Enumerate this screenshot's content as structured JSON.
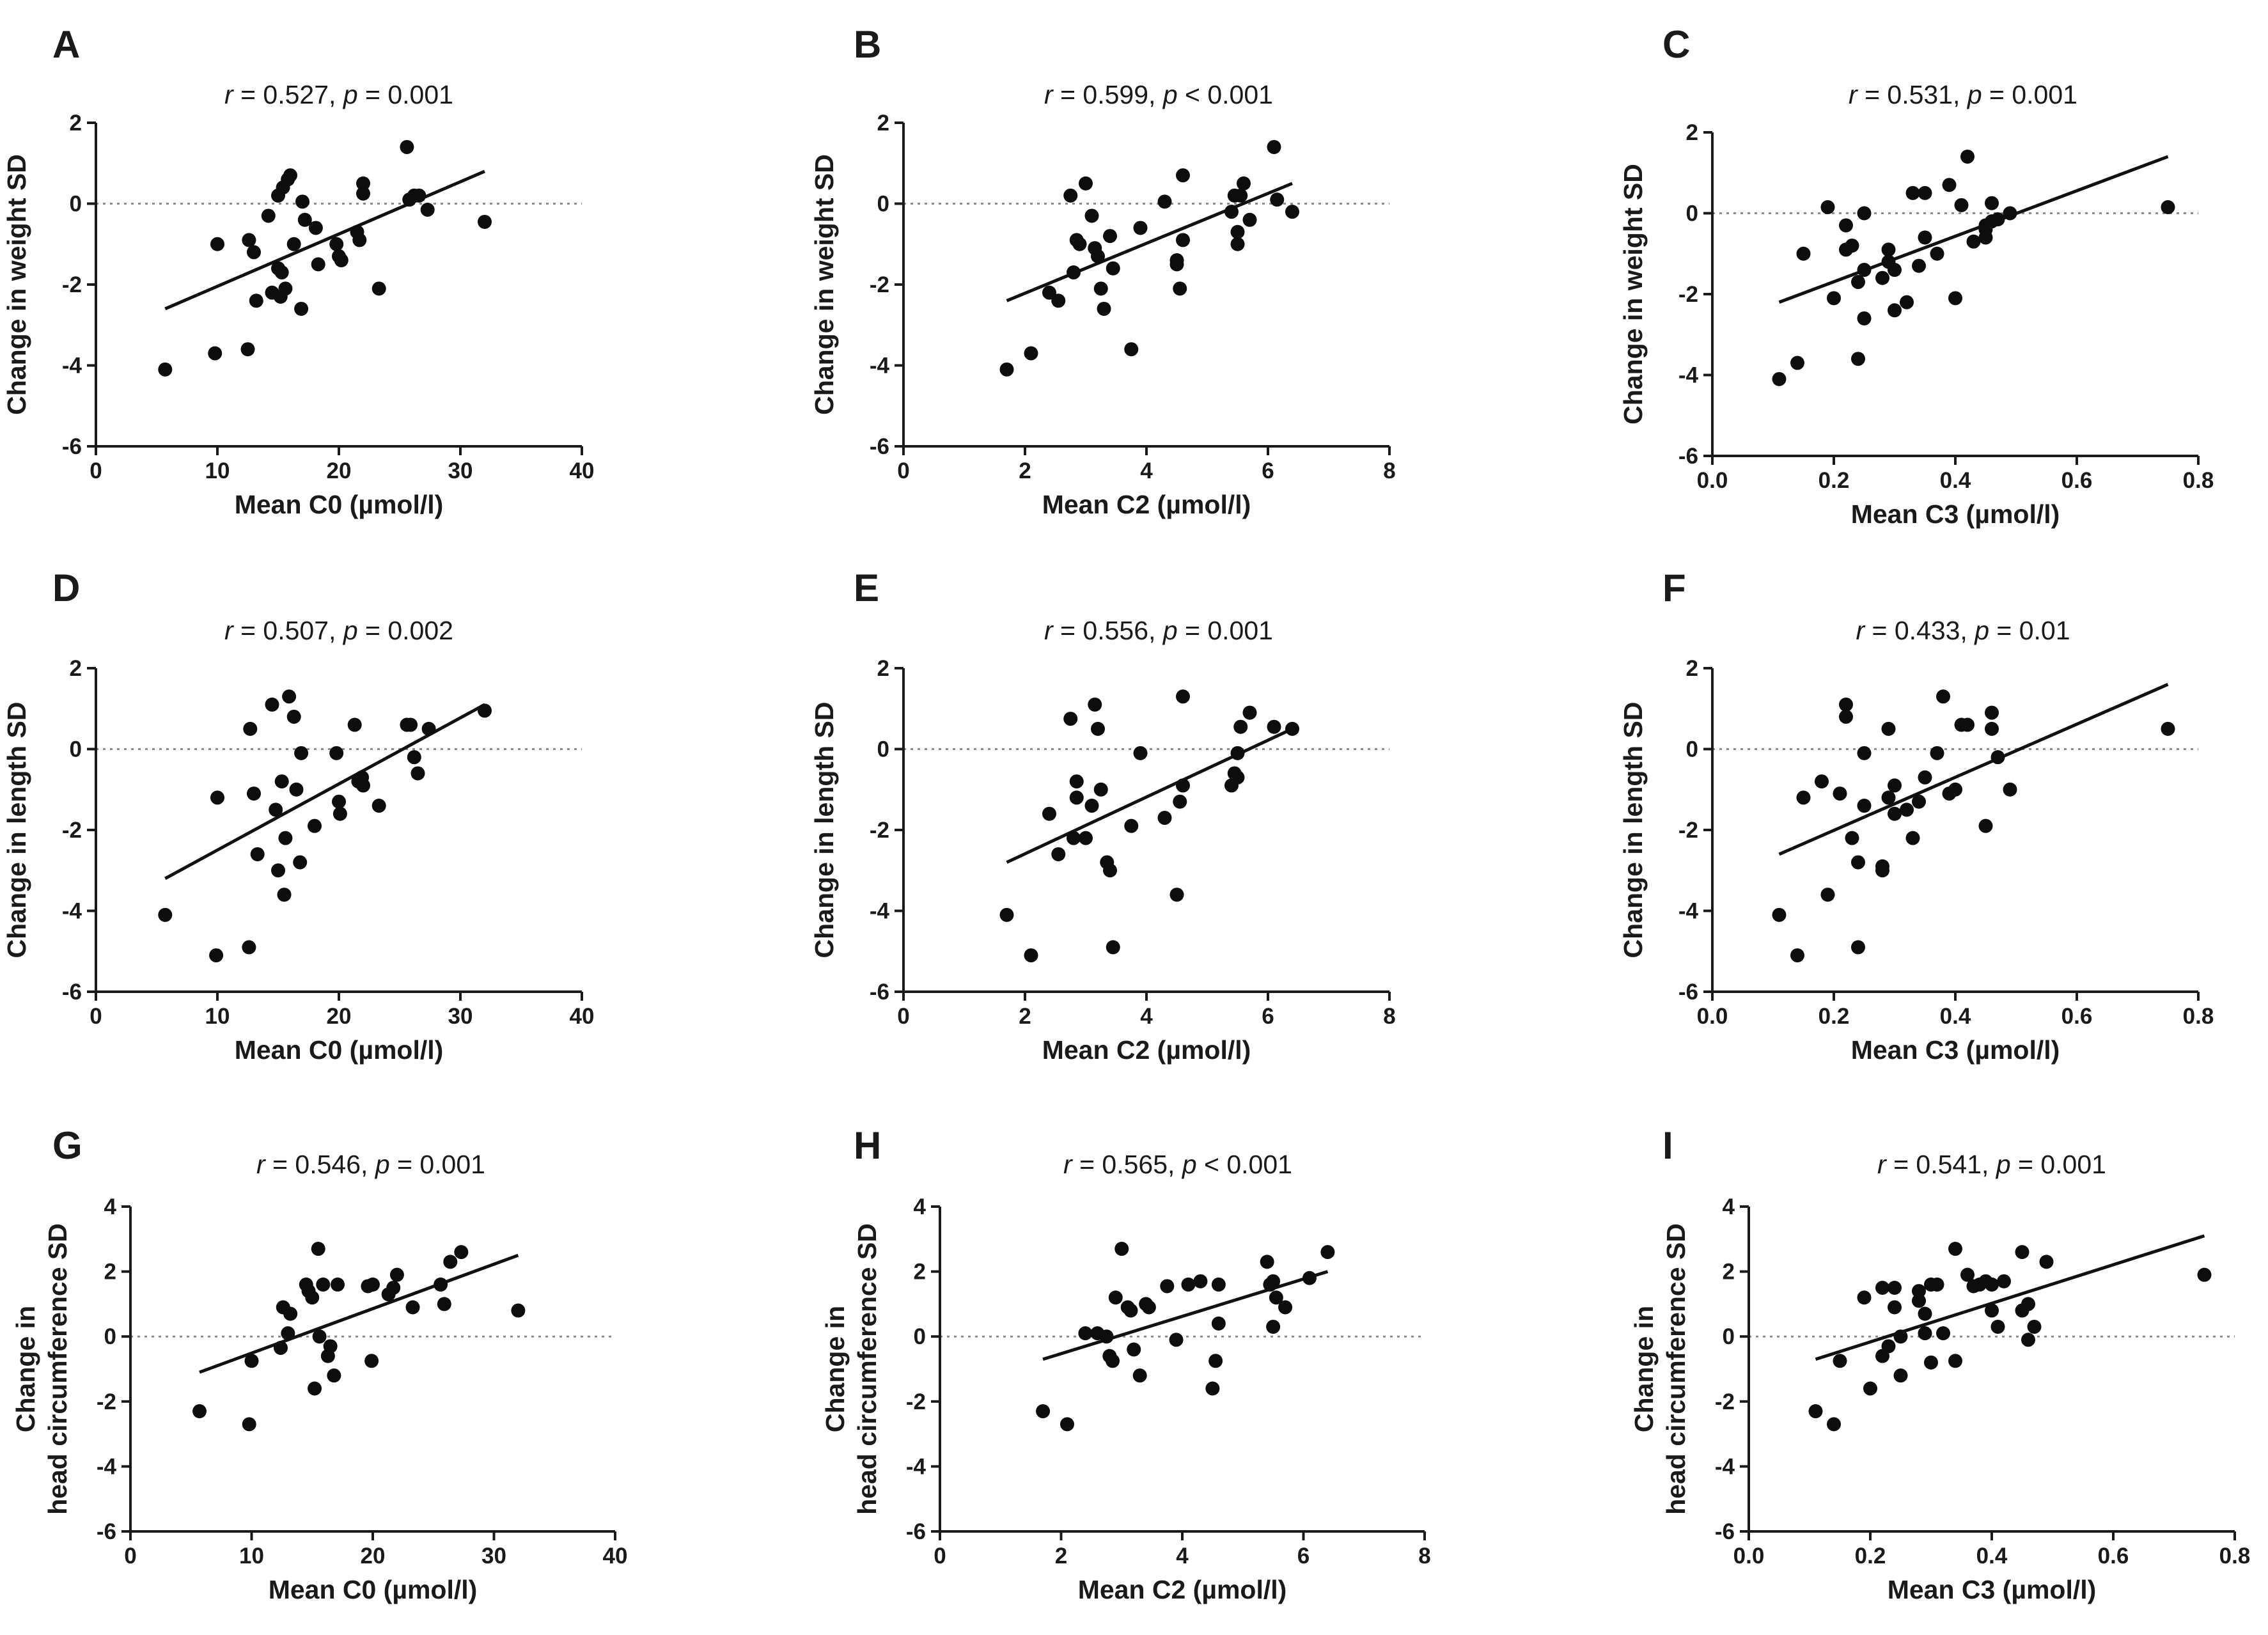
{
  "chart_data": [
    {
      "panel": "A",
      "type": "scatter",
      "title": {
        "r": "0.527",
        "p_op": "=",
        "p": "0.001"
      },
      "xlabel": "Mean C0 (µmol/l)",
      "ylabel": [
        "Change in weight SD"
      ],
      "xlim": [
        0,
        40
      ],
      "xticks": [
        "0",
        "10",
        "20",
        "30",
        "40"
      ],
      "ylim": [
        -6,
        2
      ],
      "yticks": [
        "-6",
        "-4",
        "-2",
        "0",
        "2"
      ],
      "zero_line": true,
      "fit": {
        "x": [
          5.7,
          32
        ],
        "y": [
          -2.6,
          0.8
        ]
      },
      "x": [
        5.7,
        9.8,
        10.0,
        12.5,
        12.6,
        13.0,
        13.2,
        14.2,
        14.5,
        15.0,
        15.0,
        15.2,
        15.3,
        15.4,
        15.6,
        15.8,
        16.0,
        16.3,
        16.9,
        17.0,
        17.2,
        18.1,
        18.3,
        19.8,
        20.0,
        20.2,
        21.5,
        21.7,
        22.0,
        22.0,
        23.3,
        25.6,
        25.8,
        26.2,
        26.6,
        27.3,
        32.0
      ],
      "y": [
        -4.1,
        -3.7,
        -1.0,
        -3.6,
        -0.9,
        -1.2,
        -2.4,
        -0.3,
        -2.2,
        0.2,
        -1.6,
        -2.3,
        -1.7,
        0.4,
        -2.1,
        0.6,
        0.7,
        -1.0,
        -2.6,
        0.05,
        -0.4,
        -0.6,
        -1.5,
        -1.0,
        -1.3,
        -1.4,
        -0.7,
        -0.9,
        0.5,
        0.25,
        -2.1,
        1.4,
        0.1,
        0.2,
        0.2,
        -0.15,
        -0.45
      ]
    },
    {
      "panel": "B",
      "type": "scatter",
      "title": {
        "r": "0.599",
        "p_op": "<",
        "p": "0.001"
      },
      "xlabel": "Mean C2 (µmol/l)",
      "ylabel": [
        "Change in weight SD"
      ],
      "xlim": [
        0,
        8
      ],
      "xticks": [
        "0",
        "2",
        "4",
        "6",
        "8"
      ],
      "ylim": [
        -6,
        2
      ],
      "yticks": [
        "-6",
        "-4",
        "-2",
        "0",
        "2"
      ],
      "zero_line": true,
      "fit": {
        "x": [
          1.7,
          6.4
        ],
        "y": [
          -2.4,
          0.5
        ]
      },
      "x": [
        1.7,
        2.1,
        2.4,
        2.55,
        2.75,
        2.8,
        2.85,
        2.9,
        3.0,
        3.1,
        3.15,
        3.2,
        3.25,
        3.3,
        3.4,
        3.45,
        3.75,
        3.9,
        4.3,
        4.5,
        4.55,
        4.6,
        4.6,
        4.5,
        5.4,
        5.45,
        5.5,
        5.5,
        5.55,
        5.6,
        5.7,
        6.1,
        6.15,
        6.4
      ],
      "y": [
        -4.1,
        -3.7,
        -2.2,
        -2.4,
        0.2,
        -1.7,
        -0.9,
        -1.0,
        0.5,
        -0.3,
        -1.1,
        -1.3,
        -2.1,
        -2.6,
        -0.8,
        -1.6,
        -3.6,
        -0.6,
        0.05,
        -1.5,
        -2.1,
        -0.9,
        0.7,
        -1.4,
        -0.2,
        0.2,
        -1.0,
        -0.7,
        0.2,
        0.5,
        -0.4,
        1.4,
        0.1,
        -0.2
      ]
    },
    {
      "panel": "C",
      "type": "scatter",
      "title": {
        "r": "0.531",
        "p_op": "=",
        "p": "0.001"
      },
      "xlabel": "Mean C3 (µmol/l)",
      "ylabel": [
        "Change in weight SD"
      ],
      "xlim": [
        0.0,
        0.8
      ],
      "xticks": [
        "0.0",
        "0.2",
        "0.4",
        "0.6",
        "0.8"
      ],
      "ylim": [
        -6,
        2
      ],
      "yticks": [
        "-6",
        "-4",
        "-2",
        "0",
        "2"
      ],
      "zero_line": true,
      "fit": {
        "x": [
          0.11,
          0.75
        ],
        "y": [
          -2.2,
          1.4
        ]
      },
      "x": [
        0.11,
        0.14,
        0.15,
        0.19,
        0.2,
        0.22,
        0.22,
        0.23,
        0.24,
        0.24,
        0.25,
        0.25,
        0.25,
        0.28,
        0.29,
        0.29,
        0.3,
        0.3,
        0.32,
        0.33,
        0.34,
        0.35,
        0.35,
        0.37,
        0.39,
        0.4,
        0.41,
        0.42,
        0.43,
        0.45,
        0.45,
        0.45,
        0.46,
        0.46,
        0.47,
        0.49,
        0.75
      ],
      "y": [
        -4.1,
        -3.7,
        -1.0,
        0.15,
        -2.1,
        -0.3,
        -0.9,
        -0.8,
        -3.6,
        -1.7,
        -2.6,
        -1.4,
        0.0,
        -1.6,
        -0.9,
        -1.2,
        -1.4,
        -2.4,
        -2.2,
        0.5,
        -1.3,
        -0.6,
        0.5,
        -1.0,
        0.7,
        -2.1,
        0.2,
        1.4,
        -0.7,
        -0.6,
        -0.3,
        -0.4,
        0.25,
        -0.2,
        -0.15,
        0.0,
        0.15
      ]
    },
    {
      "panel": "D",
      "type": "scatter",
      "title": {
        "r": "0.507",
        "p_op": "=",
        "p": "0.002"
      },
      "xlabel": "Mean C0 (µmol/l)",
      "ylabel": [
        "Change in length SD"
      ],
      "xlim": [
        0,
        40
      ],
      "xticks": [
        "0",
        "10",
        "20",
        "30",
        "40"
      ],
      "ylim": [
        -6,
        2
      ],
      "yticks": [
        "-6",
        "-4",
        "-2",
        "0",
        "2"
      ],
      "zero_line": true,
      "fit": {
        "x": [
          5.7,
          32
        ],
        "y": [
          -3.2,
          1.1
        ]
      },
      "x": [
        5.7,
        9.9,
        10.0,
        12.6,
        12.7,
        13.0,
        13.3,
        14.5,
        14.8,
        15.0,
        15.3,
        15.5,
        15.6,
        15.9,
        16.3,
        16.5,
        16.8,
        16.9,
        18.0,
        19.8,
        20.0,
        20.1,
        21.3,
        21.6,
        21.9,
        22.0,
        23.3,
        25.6,
        25.9,
        26.2,
        26.5,
        27.4,
        32.0
      ],
      "y": [
        -4.1,
        -5.1,
        -1.2,
        -4.9,
        0.5,
        -1.1,
        -2.6,
        1.1,
        -1.5,
        -3.0,
        -0.8,
        -3.6,
        -2.2,
        1.3,
        0.8,
        -1.0,
        -2.8,
        -0.1,
        -1.9,
        -0.1,
        -1.3,
        -1.6,
        0.6,
        -0.8,
        -0.7,
        -0.9,
        -1.4,
        0.6,
        0.6,
        -0.2,
        -0.6,
        0.5,
        0.95
      ]
    },
    {
      "panel": "E",
      "type": "scatter",
      "title": {
        "r": "0.556",
        "p_op": "=",
        "p": "0.001"
      },
      "xlabel": "Mean C2 (µmol/l)",
      "ylabel": [
        "Change in length SD"
      ],
      "xlim": [
        0,
        8
      ],
      "xticks": [
        "0",
        "2",
        "4",
        "6",
        "8"
      ],
      "ylim": [
        -6,
        2
      ],
      "yticks": [
        "-6",
        "-4",
        "-2",
        "0",
        "2"
      ],
      "zero_line": true,
      "fit": {
        "x": [
          1.7,
          6.4
        ],
        "y": [
          -2.8,
          0.5
        ]
      },
      "x": [
        1.7,
        2.1,
        2.4,
        2.55,
        2.75,
        2.8,
        2.85,
        2.85,
        3.0,
        3.1,
        3.15,
        3.2,
        3.25,
        3.35,
        3.4,
        3.45,
        3.75,
        3.9,
        4.3,
        4.5,
        4.55,
        4.6,
        4.6,
        5.4,
        5.45,
        5.5,
        5.5,
        5.55,
        5.7,
        6.1,
        6.4
      ],
      "y": [
        -4.1,
        -5.1,
        -1.6,
        -2.6,
        0.75,
        -2.2,
        -0.8,
        -1.2,
        -2.2,
        -1.4,
        1.1,
        0.5,
        -1.0,
        -2.8,
        -3.0,
        -4.9,
        -1.9,
        -0.1,
        -1.7,
        -3.6,
        -1.3,
        -0.9,
        1.3,
        -0.9,
        -0.6,
        -0.1,
        -0.7,
        0.55,
        0.9,
        0.55,
        0.5
      ]
    },
    {
      "panel": "F",
      "type": "scatter",
      "title": {
        "r": "0.433",
        "p_op": "=",
        "p": "0.01"
      },
      "xlabel": "Mean C3 (µmol/l)",
      "ylabel": [
        "Change in length SD"
      ],
      "xlim": [
        0.0,
        0.8
      ],
      "xticks": [
        "0.0",
        "0.2",
        "0.4",
        "0.6",
        "0.8"
      ],
      "ylim": [
        -6,
        2
      ],
      "yticks": [
        "-6",
        "-4",
        "-2",
        "0",
        "2"
      ],
      "zero_line": true,
      "fit": {
        "x": [
          0.11,
          0.75
        ],
        "y": [
          -2.6,
          1.6
        ]
      },
      "x": [
        0.11,
        0.14,
        0.15,
        0.18,
        0.19,
        0.21,
        0.22,
        0.22,
        0.23,
        0.24,
        0.24,
        0.25,
        0.25,
        0.28,
        0.28,
        0.29,
        0.29,
        0.3,
        0.3,
        0.32,
        0.33,
        0.34,
        0.35,
        0.37,
        0.38,
        0.39,
        0.4,
        0.41,
        0.42,
        0.45,
        0.46,
        0.46,
        0.47,
        0.49,
        0.75
      ],
      "y": [
        -4.1,
        -5.1,
        -1.2,
        -0.8,
        -3.6,
        -1.1,
        1.1,
        0.8,
        -2.2,
        -4.9,
        -2.8,
        -1.4,
        -0.1,
        -2.9,
        -3.0,
        -1.2,
        0.5,
        -1.6,
        -0.9,
        -1.5,
        -2.2,
        -1.3,
        -0.7,
        -0.1,
        1.3,
        -1.1,
        -1.0,
        0.6,
        0.6,
        -1.9,
        0.9,
        0.5,
        -0.2,
        -1.0,
        0.5
      ]
    },
    {
      "panel": "G",
      "type": "scatter",
      "title": {
        "r": "0.546",
        "p_op": "=",
        "p": "0.001"
      },
      "xlabel": "Mean C0 (µmol/l)",
      "ylabel": [
        "Change in",
        "head circumference SD"
      ],
      "xlim": [
        0,
        40
      ],
      "xticks": [
        "0",
        "10",
        "20",
        "30",
        "40"
      ],
      "ylim": [
        -6,
        4
      ],
      "yticks": [
        "-6",
        "-4",
        "-2",
        "0",
        "2",
        "4"
      ],
      "zero_line": true,
      "fit": {
        "x": [
          5.7,
          32
        ],
        "y": [
          -1.1,
          2.5
        ]
      },
      "x": [
        5.7,
        9.8,
        10.0,
        12.4,
        12.6,
        13.0,
        13.2,
        14.5,
        14.7,
        15.0,
        15.2,
        15.5,
        15.6,
        15.9,
        16.3,
        16.5,
        16.8,
        17.1,
        19.6,
        19.9,
        20.0,
        21.3,
        21.7,
        22.0,
        23.3,
        25.6,
        25.9,
        26.4,
        27.3,
        32.0
      ],
      "y": [
        -2.3,
        -2.7,
        -0.75,
        -0.35,
        0.9,
        0.1,
        0.7,
        1.6,
        1.4,
        1.2,
        -1.6,
        2.7,
        0.0,
        1.6,
        -0.6,
        -0.3,
        -1.2,
        1.6,
        1.55,
        -0.75,
        1.6,
        1.3,
        1.5,
        1.9,
        0.9,
        1.6,
        1.0,
        2.3,
        2.6,
        0.8
      ]
    },
    {
      "panel": "H",
      "type": "scatter",
      "title": {
        "r": "0.565",
        "p_op": "<",
        "p": "0.001"
      },
      "xlabel": "Mean C2 (µmol/l)",
      "ylabel": [
        "Change in",
        "head circumference SD"
      ],
      "xlim": [
        0,
        8
      ],
      "xticks": [
        "0",
        "2",
        "4",
        "6",
        "8"
      ],
      "ylim": [
        -6,
        4
      ],
      "yticks": [
        "-6",
        "-4",
        "-2",
        "0",
        "2",
        "4"
      ],
      "zero_line": true,
      "fit": {
        "x": [
          1.7,
          6.4
        ],
        "y": [
          -0.7,
          2.0
        ]
      },
      "x": [
        1.7,
        2.1,
        2.4,
        2.6,
        2.75,
        2.8,
        2.85,
        2.9,
        3.0,
        3.1,
        3.15,
        3.2,
        3.3,
        3.4,
        3.45,
        3.75,
        3.9,
        4.1,
        4.3,
        4.5,
        4.55,
        4.6,
        4.6,
        5.4,
        5.45,
        5.5,
        5.5,
        5.55,
        5.7,
        6.1,
        6.4
      ],
      "y": [
        -2.3,
        -2.7,
        0.1,
        0.1,
        0.0,
        -0.6,
        -0.75,
        1.2,
        2.7,
        0.9,
        0.8,
        -0.4,
        -1.2,
        1.0,
        0.9,
        1.55,
        -0.1,
        1.6,
        1.7,
        -1.6,
        -0.75,
        1.6,
        0.4,
        2.3,
        1.6,
        1.7,
        0.3,
        1.2,
        0.9,
        1.8,
        2.6
      ]
    },
    {
      "panel": "I",
      "type": "scatter",
      "title": {
        "r": "0.541",
        "p_op": "=",
        "p": "0.001"
      },
      "xlabel": "Mean C3 (µmol/l)",
      "ylabel": [
        "Change in",
        "head circumference SD"
      ],
      "xlim": [
        0.0,
        0.8
      ],
      "xticks": [
        "0.0",
        "0.2",
        "0.4",
        "0.6",
        "0.8"
      ],
      "ylim": [
        -6,
        4
      ],
      "yticks": [
        "-6",
        "-4",
        "-2",
        "0",
        "2",
        "4"
      ],
      "zero_line": true,
      "fit": {
        "x": [
          0.11,
          0.75
        ],
        "y": [
          -0.7,
          3.1
        ]
      },
      "x": [
        0.11,
        0.14,
        0.15,
        0.19,
        0.2,
        0.22,
        0.22,
        0.23,
        0.24,
        0.24,
        0.25,
        0.25,
        0.28,
        0.28,
        0.29,
        0.29,
        0.3,
        0.3,
        0.31,
        0.32,
        0.34,
        0.34,
        0.36,
        0.37,
        0.38,
        0.39,
        0.4,
        0.4,
        0.41,
        0.42,
        0.45,
        0.45,
        0.46,
        0.46,
        0.47,
        0.49,
        0.75
      ],
      "y": [
        -2.3,
        -2.7,
        -0.75,
        1.2,
        -1.6,
        1.5,
        -0.6,
        -0.3,
        1.5,
        0.9,
        0.0,
        -1.2,
        1.1,
        1.4,
        0.7,
        0.1,
        1.6,
        -0.8,
        1.6,
        0.1,
        2.7,
        -0.75,
        1.9,
        1.55,
        1.6,
        1.7,
        0.8,
        1.6,
        0.3,
        1.7,
        0.8,
        2.6,
        -0.1,
        1.0,
        0.3,
        2.3,
        1.9
      ]
    }
  ]
}
